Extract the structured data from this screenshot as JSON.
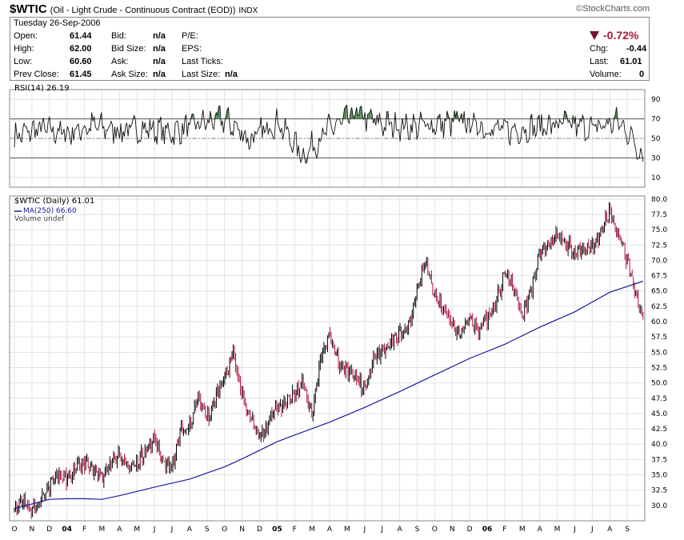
{
  "header": {
    "symbol": "$WTIC",
    "description": "(Oil - Light Crude - Continuous Contract (EOD))",
    "exchange": "INDX",
    "brand": "©StockCharts.com",
    "date": "Tuesday  26-Sep-2006"
  },
  "quote": {
    "open_label": "Open:",
    "open": "61.44",
    "high_label": "High:",
    "high": "62.00",
    "low_label": "Low:",
    "low": "60.60",
    "prev_label": "Prev Close:",
    "prev": "61.45",
    "bid_label": "Bid:",
    "bid": "n/a",
    "bidsize_label": "Bid Size:",
    "bidsize": "n/a",
    "ask_label": "Ask:",
    "ask": "n/a",
    "asksize_label": "Ask Size:",
    "asksize": "n/a",
    "pe_label": "P/E:",
    "eps_label": "EPS:",
    "lastticks_label": "Last Ticks:",
    "lastsize_label": "Last Size:",
    "lastsize": "n/a",
    "pct_change": "-0.72%",
    "chg_label": "Chg:",
    "chg": "-0.44",
    "last_label": "Last:",
    "last": "61.01",
    "volume_label": "Volume:",
    "volume": "0"
  },
  "colors": {
    "up": "#000000",
    "down": "#b0103a",
    "ma": "#1a1aa0",
    "rsi_over": "#4f8a4f",
    "rsi_under": "#b07080"
  },
  "chart_data": [
    {
      "type": "line",
      "title": "RSI(14) 26.19",
      "name": "RSI(14)",
      "current": 26.19,
      "ylim": [
        0,
        100
      ],
      "yticks": [
        10,
        30,
        50,
        70,
        90
      ],
      "ytick_labels": [
        "10",
        "30",
        "50",
        "70",
        "90"
      ],
      "reference_lines": [
        30,
        50,
        70
      ],
      "x": [
        0,
        1.5,
        3,
        4.5,
        6,
        7.5,
        9,
        10.5,
        12,
        13.5,
        15,
        16.5,
        18,
        19.5,
        21,
        22.5,
        24,
        25.5,
        27,
        28.5,
        30,
        31.5,
        33,
        34.5,
        35.5,
        36
      ],
      "values": [
        52,
        60,
        55,
        63,
        58,
        60,
        56,
        65,
        70,
        48,
        68,
        32,
        60,
        75,
        65,
        62,
        64,
        68,
        60,
        58,
        62,
        65,
        60,
        68,
        45,
        26
      ]
    },
    {
      "type": "bar",
      "title": "$WTIC (Daily) 61.01",
      "legend": [
        "$WTIC (Daily) 61.01",
        "MA(250) 66.60",
        "Volume undef"
      ],
      "ylim": [
        27.5,
        80.5
      ],
      "yticks": [
        30,
        32.5,
        35,
        37.5,
        40,
        42.5,
        45,
        47.5,
        50,
        52.5,
        55,
        57.5,
        60,
        62.5,
        65,
        67.5,
        70,
        72.5,
        75,
        77.5,
        80
      ],
      "ytick_labels": [
        "30.0",
        "32.5",
        "35.0",
        "37.5",
        "40.0",
        "42.5",
        "45.0",
        "47.5",
        "50.0",
        "52.5",
        "55.0",
        "57.5",
        "60.0",
        "62.5",
        "65.0",
        "67.5",
        "70.0",
        "72.5",
        "75.0",
        "77.5",
        "80.0"
      ],
      "xtick_labels": [
        "O",
        "N",
        "D",
        "04",
        "F",
        "M",
        "A",
        "M",
        "J",
        "J",
        "A",
        "S",
        "O",
        "N",
        "D",
        "05",
        "F",
        "M",
        "A",
        "M",
        "J",
        "J",
        "A",
        "S",
        "O",
        "N",
        "D",
        "06",
        "F",
        "M",
        "A",
        "M",
        "J",
        "J",
        "A",
        "S"
      ],
      "price_x": [
        0,
        0.5,
        1,
        1.5,
        2,
        2.5,
        3,
        4,
        5,
        6,
        6.5,
        7,
        8,
        8.5,
        9,
        9.5,
        10,
        10.5,
        11,
        12,
        12.5,
        13,
        13.5,
        14,
        14.5,
        15,
        16,
        16.5,
        17,
        17.5,
        18,
        18.5,
        19,
        20,
        20.5,
        21,
        22,
        22.5,
        23,
        23.5,
        24,
        25,
        25.5,
        26,
        26.5,
        27,
        27.5,
        28,
        28.5,
        29,
        29.5,
        30,
        31,
        32,
        33,
        33.5,
        34,
        34.5,
        35,
        35.5,
        35.9
      ],
      "close": [
        29,
        31,
        29,
        30.5,
        33.5,
        35,
        34.5,
        37,
        35,
        38.5,
        36,
        37,
        41,
        37,
        36,
        42,
        43,
        48,
        44,
        51,
        55,
        48,
        44,
        41,
        43.5,
        46,
        48,
        50,
        45,
        54,
        58,
        53,
        52,
        49,
        54,
        55,
        58,
        59,
        65,
        70,
        64,
        60,
        58,
        61,
        58.5,
        60.5,
        63,
        68,
        66,
        61,
        65,
        71,
        74,
        71,
        72,
        75,
        78,
        74,
        70,
        64,
        61
      ],
      "ma250": {
        "name": "MA(250)",
        "current": 66.6,
        "x": [
          0,
          2,
          3,
          4,
          5,
          6,
          8,
          10,
          12,
          13,
          14,
          15,
          16,
          18,
          20,
          22,
          24,
          26,
          28,
          30,
          32,
          34,
          35.9
        ],
        "values": [
          29.5,
          31.0,
          31.1,
          31.1,
          31.0,
          31.6,
          33.0,
          34.3,
          36.3,
          37.6,
          39.0,
          40.4,
          41.5,
          43.6,
          46.0,
          48.6,
          51.3,
          54.0,
          56.3,
          59.1,
          61.6,
          64.8,
          66.6
        ]
      }
    }
  ]
}
